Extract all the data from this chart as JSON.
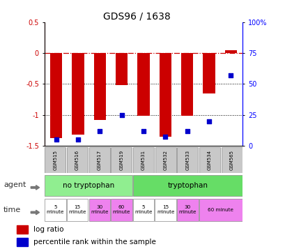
{
  "title": "GDS96 / 1638",
  "samples": [
    "GSM515",
    "GSM516",
    "GSM517",
    "GSM519",
    "GSM531",
    "GSM532",
    "GSM533",
    "GSM534",
    "GSM565"
  ],
  "log_ratio": [
    -1.38,
    -1.32,
    -1.08,
    -0.52,
    -1.02,
    -1.35,
    -1.02,
    -0.65,
    0.05
  ],
  "percentile": [
    5,
    5,
    12,
    25,
    12,
    7,
    12,
    20,
    57
  ],
  "ylim_left": [
    -1.5,
    0.5
  ],
  "ylim_right": [
    0,
    100
  ],
  "agent_labels": [
    "no tryptophan",
    "tryptophan"
  ],
  "agent_boundaries": [
    0,
    4,
    9
  ],
  "agent_colors": [
    "#90EE90",
    "#66DD66"
  ],
  "time_info": [
    [
      0,
      1,
      "5\nminute",
      "#FFFFFF"
    ],
    [
      1,
      2,
      "15\nminute",
      "#FFFFFF"
    ],
    [
      2,
      3,
      "30\nminute",
      "#EE82EE"
    ],
    [
      3,
      4,
      "60\nminute",
      "#EE82EE"
    ],
    [
      4,
      5,
      "5\nminute",
      "#FFFFFF"
    ],
    [
      5,
      6,
      "15\nminute",
      "#FFFFFF"
    ],
    [
      6,
      7,
      "30\nminute",
      "#EE82EE"
    ],
    [
      7,
      9,
      "60 minute",
      "#EE82EE"
    ]
  ],
  "bar_color": "#CC0000",
  "dot_color": "#0000CC",
  "sample_box_color": "#C8C8C8",
  "legend_labels": [
    "log ratio",
    "percentile rank within the sample"
  ],
  "title_fontsize": 10,
  "ytick_fontsize": 7,
  "label_fontsize": 8
}
